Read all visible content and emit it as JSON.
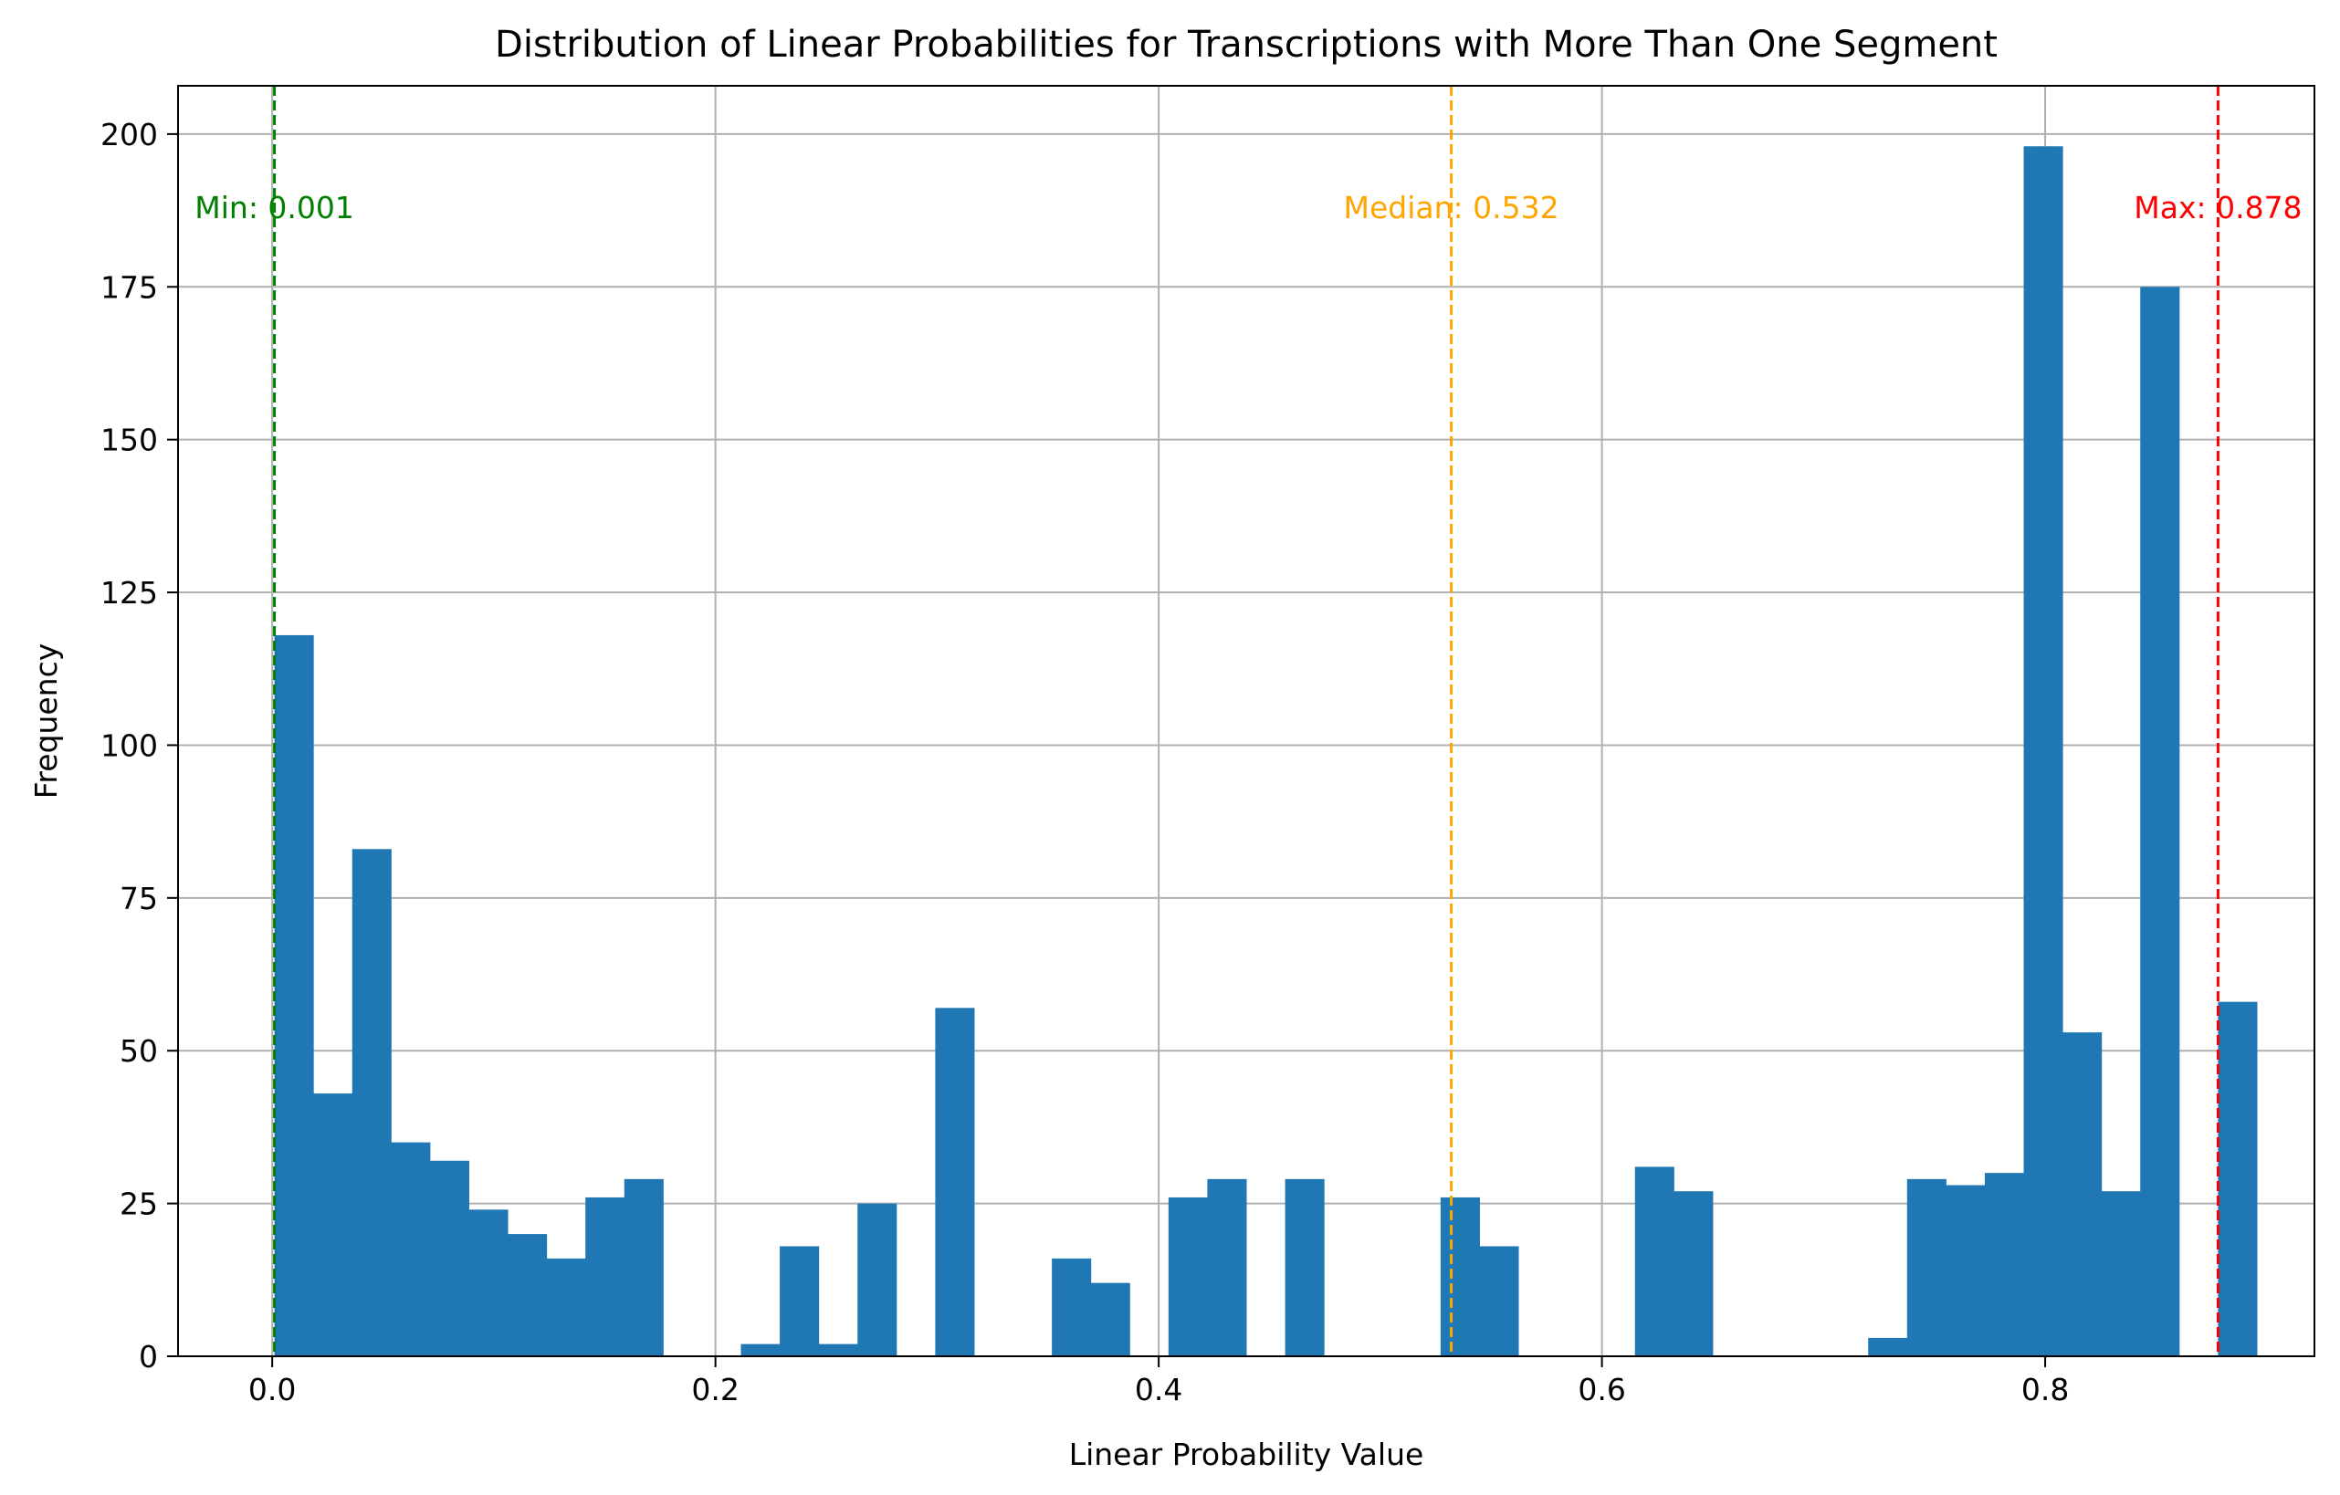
{
  "chart_data": {
    "type": "bar",
    "title": "Distribution of Linear Probabilities for Transcriptions with More Than One Segment",
    "xlabel": "Linear Probability Value",
    "ylabel": "Frequency",
    "xlim": [
      -0.0425,
      0.9215
    ],
    "ylim": [
      0,
      207.9
    ],
    "xticks": [
      0.0,
      0.2,
      0.4,
      0.6,
      0.8
    ],
    "xtick_labels": [
      "0.0",
      "0.2",
      "0.4",
      "0.6",
      "0.8"
    ],
    "yticks": [
      0,
      25,
      50,
      75,
      100,
      125,
      150,
      175,
      200
    ],
    "ytick_labels": [
      "0",
      "25",
      "50",
      "75",
      "100",
      "125",
      "150",
      "175",
      "200"
    ],
    "grid": true,
    "bar_color": "#1f77b4",
    "bins": {
      "start": 0.001,
      "width": 0.01754,
      "counts": [
        118,
        43,
        83,
        35,
        32,
        24,
        20,
        16,
        26,
        29,
        0,
        0,
        2,
        18,
        2,
        25,
        0,
        57,
        0,
        0,
        16,
        12,
        0,
        26,
        29,
        0,
        29,
        0,
        0,
        0,
        26,
        18,
        0,
        0,
        0,
        31,
        27,
        0,
        0,
        0,
        0,
        3,
        29,
        28,
        30,
        198,
        53,
        27,
        175,
        0,
        58
      ]
    },
    "reference_lines": [
      {
        "label": "Min: 0.001",
        "x": 0.001,
        "color": "#008000",
        "text_x": 0.001,
        "text_y": 188,
        "anchor": "middle"
      },
      {
        "label": "Median: 0.532",
        "x": 0.532,
        "color": "#ffa500",
        "text_x": 0.532,
        "text_y": 188,
        "anchor": "middle"
      },
      {
        "label": "Max: 0.878",
        "x": 0.878,
        "color": "#ff0000",
        "text_x": 0.878,
        "text_y": 188,
        "anchor": "middle"
      }
    ]
  }
}
